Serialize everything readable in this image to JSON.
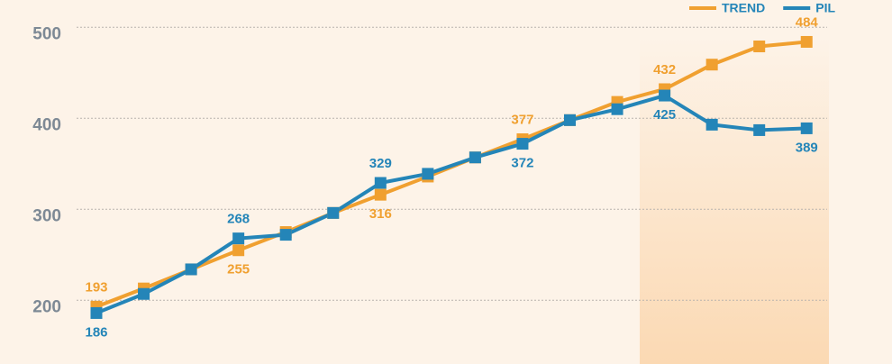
{
  "chart_data": {
    "type": "line",
    "categories": [
      null,
      null,
      null,
      null,
      null,
      null,
      null,
      null,
      null,
      null,
      null,
      null,
      null,
      null,
      null,
      null
    ],
    "series": [
      {
        "name": "TREND",
        "color": "#f0a030",
        "values": [
          193,
          213,
          234,
          255,
          275,
          296,
          316,
          336,
          357,
          377,
          398,
          418,
          432,
          459,
          479,
          484
        ],
        "value_labels": [
          "193",
          null,
          null,
          "255",
          null,
          null,
          "316",
          null,
          null,
          "377",
          null,
          null,
          "432",
          null,
          null,
          "484"
        ]
      },
      {
        "name": "PIL",
        "color": "#2485b8",
        "values": [
          186,
          207,
          234,
          268,
          272,
          296,
          329,
          339,
          357,
          372,
          398,
          410,
          425,
          393,
          387,
          389
        ],
        "value_labels": [
          "186",
          null,
          null,
          "268",
          null,
          null,
          "329",
          null,
          null,
          "372",
          null,
          null,
          "425",
          null,
          null,
          "389"
        ]
      }
    ],
    "ylim": [
      130,
      530
    ],
    "yticks": [
      200,
      300,
      400,
      500
    ],
    "grid": true,
    "legend": "upper right"
  }
}
